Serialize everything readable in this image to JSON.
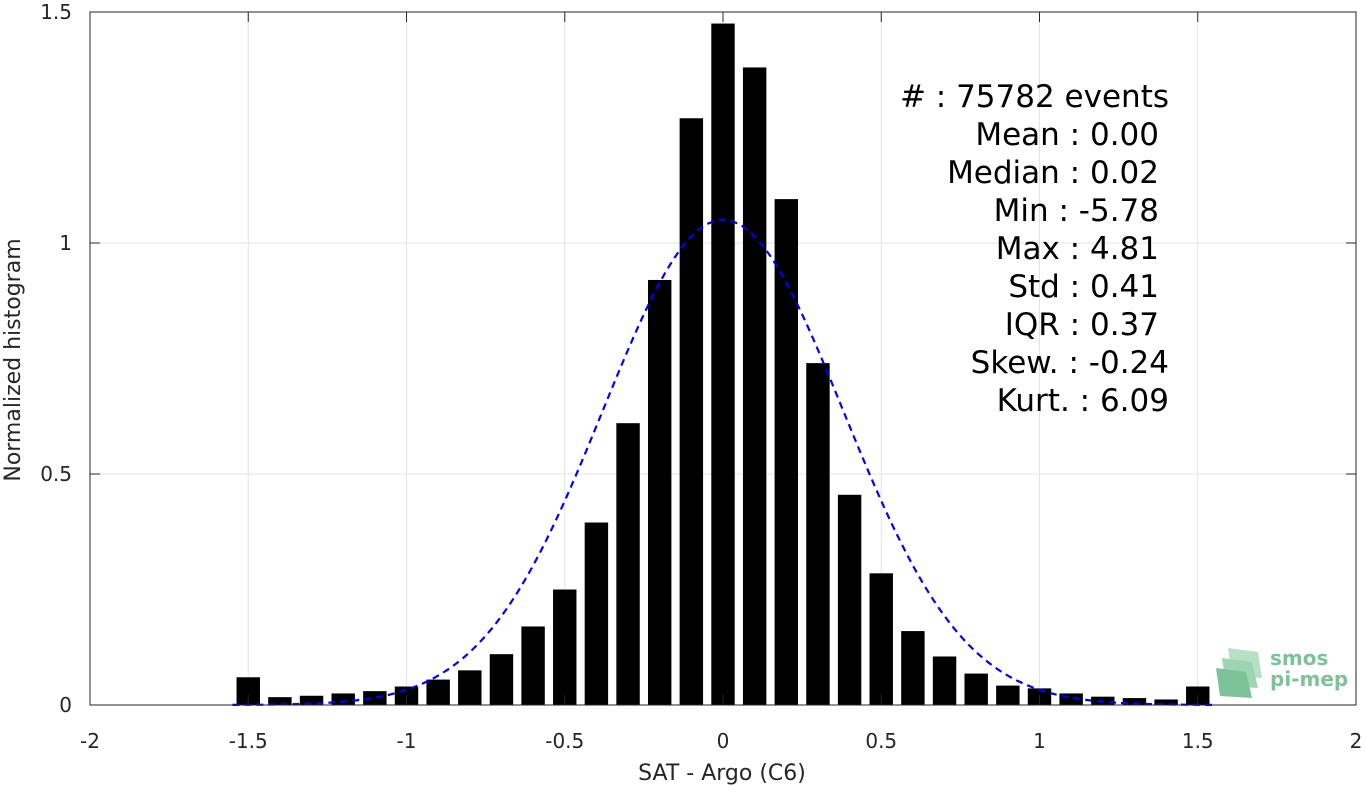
{
  "chart_data": {
    "type": "bar",
    "xlabel": "SAT - Argo (C6)",
    "ylabel": "Normalized histogram",
    "xlim": [
      -2,
      2
    ],
    "ylim": [
      0,
      1.5
    ],
    "grid": true,
    "x_ticks": [
      "-2",
      "-1.5",
      "-1",
      "-0.5",
      "0",
      "0.5",
      "1",
      "1.5",
      "2"
    ],
    "y_ticks": [
      "0",
      "0.5",
      "1",
      "1.5"
    ],
    "bar_color": "#000000",
    "bin_width": 0.1,
    "x": [
      -1.5,
      -1.4,
      -1.3,
      -1.2,
      -1.1,
      -1.0,
      -0.9,
      -0.8,
      -0.7,
      -0.6,
      -0.5,
      -0.4,
      -0.3,
      -0.2,
      -0.1,
      0.0,
      0.1,
      0.2,
      0.3,
      0.4,
      0.5,
      0.6,
      0.7,
      0.8,
      0.9,
      1.0,
      1.1,
      1.2,
      1.3,
      1.4,
      1.5
    ],
    "values": [
      0.06,
      0.017,
      0.02,
      0.025,
      0.03,
      0.04,
      0.055,
      0.075,
      0.11,
      0.17,
      0.25,
      0.395,
      0.61,
      0.92,
      1.27,
      1.475,
      1.38,
      1.095,
      0.74,
      0.455,
      0.285,
      0.16,
      0.105,
      0.068,
      0.042,
      0.036,
      0.025,
      0.018,
      0.015,
      0.012,
      0.04
    ],
    "fit_curve": {
      "type": "gaussian",
      "mean": 0.0,
      "std": 0.38,
      "peak": 1.05,
      "x_range": [
        -1.55,
        1.55
      ],
      "color": "#0000ff",
      "style": "dashed"
    },
    "annotation": [
      "#  : 75782 events",
      "Mean : 0.00",
      "Median : 0.02",
      "Min : -5.78",
      "Max : 4.81",
      "Std : 0.41",
      "IQR : 0.37",
      "Skew. : -0.24",
      "Kurt. : 6.09"
    ]
  },
  "logo": {
    "line1": "smos",
    "line2": "pi-mep",
    "color": "#7cc39a"
  }
}
